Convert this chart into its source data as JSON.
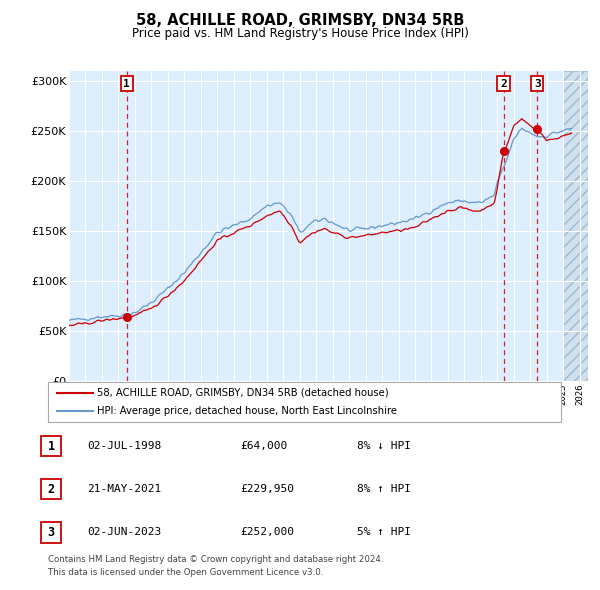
{
  "title": "58, ACHILLE ROAD, GRIMSBY, DN34 5RB",
  "subtitle": "Price paid vs. HM Land Registry's House Price Index (HPI)",
  "legend_entries": [
    "58, ACHILLE ROAD, GRIMSBY, DN34 5RB (detached house)",
    "HPI: Average price, detached house, North East Lincolnshire"
  ],
  "transactions": [
    {
      "num": 1,
      "date": "02-JUL-1998",
      "price": "£64,000",
      "pct": "8% ↓ HPI",
      "decimal_date": 1998.5
    },
    {
      "num": 2,
      "date": "21-MAY-2021",
      "price": "£229,950",
      "pct": "8% ↑ HPI",
      "decimal_date": 2021.38
    },
    {
      "num": 3,
      "date": "02-JUN-2023",
      "price": "£252,000",
      "pct": "5% ↑ HPI",
      "decimal_date": 2023.42
    }
  ],
  "transaction_values": [
    64000,
    229950,
    252000
  ],
  "footnote_line1": "Contains HM Land Registry data © Crown copyright and database right 2024.",
  "footnote_line2": "This data is licensed under the Open Government Licence v3.0.",
  "hpi_color": "#6699cc",
  "price_color": "#cc0000",
  "bg_color": "#ddeeff",
  "grid_color": "#ffffff",
  "ylim": [
    0,
    310000
  ],
  "yticks": [
    0,
    50000,
    100000,
    150000,
    200000,
    250000,
    300000
  ],
  "xlim_start": 1995.0,
  "xlim_end": 2026.5,
  "hpi_waypoints": [
    [
      1995.0,
      60000
    ],
    [
      1996.0,
      62000
    ],
    [
      1997.0,
      64000
    ],
    [
      1998.0,
      65000
    ],
    [
      1999.0,
      68000
    ],
    [
      2000.0,
      78000
    ],
    [
      2001.0,
      92000
    ],
    [
      2002.0,
      108000
    ],
    [
      2003.0,
      128000
    ],
    [
      2004.0,
      148000
    ],
    [
      2005.0,
      155000
    ],
    [
      2006.0,
      162000
    ],
    [
      2007.0,
      175000
    ],
    [
      2007.8,
      178000
    ],
    [
      2008.5,
      165000
    ],
    [
      2009.0,
      148000
    ],
    [
      2009.8,
      158000
    ],
    [
      2010.5,
      162000
    ],
    [
      2011.0,
      158000
    ],
    [
      2012.0,
      150000
    ],
    [
      2013.0,
      152000
    ],
    [
      2014.0,
      155000
    ],
    [
      2015.0,
      158000
    ],
    [
      2016.0,
      162000
    ],
    [
      2017.0,
      170000
    ],
    [
      2018.0,
      178000
    ],
    [
      2018.8,
      180000
    ],
    [
      2019.5,
      178000
    ],
    [
      2020.0,
      178000
    ],
    [
      2020.8,
      185000
    ],
    [
      2021.0,
      198000
    ],
    [
      2021.5,
      218000
    ],
    [
      2022.0,
      242000
    ],
    [
      2022.5,
      252000
    ],
    [
      2023.0,
      248000
    ],
    [
      2023.5,
      244000
    ],
    [
      2024.0,
      245000
    ],
    [
      2024.5,
      248000
    ],
    [
      2025.0,
      250000
    ],
    [
      2025.5,
      252000
    ]
  ],
  "price_waypoints": [
    [
      1995.0,
      55000
    ],
    [
      1996.0,
      57000
    ],
    [
      1997.0,
      60000
    ],
    [
      1998.0,
      62000
    ],
    [
      1999.0,
      65000
    ],
    [
      2000.0,
      72000
    ],
    [
      2001.0,
      85000
    ],
    [
      2002.0,
      100000
    ],
    [
      2003.0,
      120000
    ],
    [
      2004.0,
      140000
    ],
    [
      2005.0,
      148000
    ],
    [
      2006.0,
      155000
    ],
    [
      2007.0,
      165000
    ],
    [
      2007.8,
      170000
    ],
    [
      2008.5,
      155000
    ],
    [
      2009.0,
      138000
    ],
    [
      2009.8,
      148000
    ],
    [
      2010.5,
      152000
    ],
    [
      2011.0,
      148000
    ],
    [
      2012.0,
      143000
    ],
    [
      2013.0,
      145000
    ],
    [
      2014.0,
      148000
    ],
    [
      2015.0,
      150000
    ],
    [
      2016.0,
      153000
    ],
    [
      2017.0,
      162000
    ],
    [
      2018.0,
      170000
    ],
    [
      2018.8,
      173000
    ],
    [
      2019.5,
      170000
    ],
    [
      2020.0,
      170000
    ],
    [
      2020.8,
      178000
    ],
    [
      2021.0,
      192000
    ],
    [
      2021.38,
      229950
    ],
    [
      2021.5,
      232000
    ],
    [
      2022.0,
      255000
    ],
    [
      2022.5,
      262000
    ],
    [
      2023.0,
      255000
    ],
    [
      2023.42,
      252000
    ],
    [
      2024.0,
      240000
    ],
    [
      2024.5,
      242000
    ],
    [
      2025.0,
      245000
    ],
    [
      2025.5,
      248000
    ]
  ]
}
